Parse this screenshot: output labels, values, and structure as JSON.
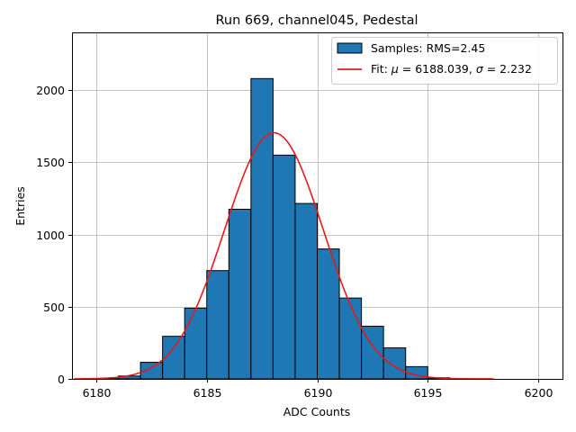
{
  "chart_data": {
    "type": "bar",
    "title": "Run 669, channel045, Pedestal",
    "xlabel": "ADC Counts",
    "ylabel": "Entries",
    "xlim": [
      6178.9,
      6201.1
    ],
    "ylim": [
      0,
      2400
    ],
    "xticks": [
      6180,
      6185,
      6190,
      6195,
      6200
    ],
    "yticks": [
      0,
      500,
      1000,
      1500,
      2000
    ],
    "grid": true,
    "legend_position": "top-right",
    "histogram": {
      "name": "Samples: RMS=2.45",
      "bin_edges": [
        6179,
        6180,
        6181,
        6182,
        6183,
        6184,
        6185,
        6186,
        6187,
        6188,
        6189,
        6190,
        6191,
        6192,
        6193,
        6194,
        6195,
        6196,
        6197,
        6198
      ],
      "counts": [
        0,
        2,
        20,
        115,
        295,
        490,
        750,
        1175,
        2080,
        1550,
        1215,
        900,
        560,
        365,
        215,
        85,
        8,
        1,
        0
      ],
      "color": "#1f77b4",
      "edgecolor": "#000000"
    },
    "fit": {
      "name": "Fit: μ = 6188.039, σ = 2.232",
      "label_prefix": "Fit: ",
      "mu_symbol": "μ",
      "mu_value": " = 6188.039, ",
      "sigma_symbol": "σ",
      "sigma_value": " = 2.232",
      "mu": 6188.039,
      "sigma": 2.232,
      "amplitude": 1705,
      "x_range": [
        6179,
        6198
      ],
      "color": "#e31a1c"
    }
  }
}
